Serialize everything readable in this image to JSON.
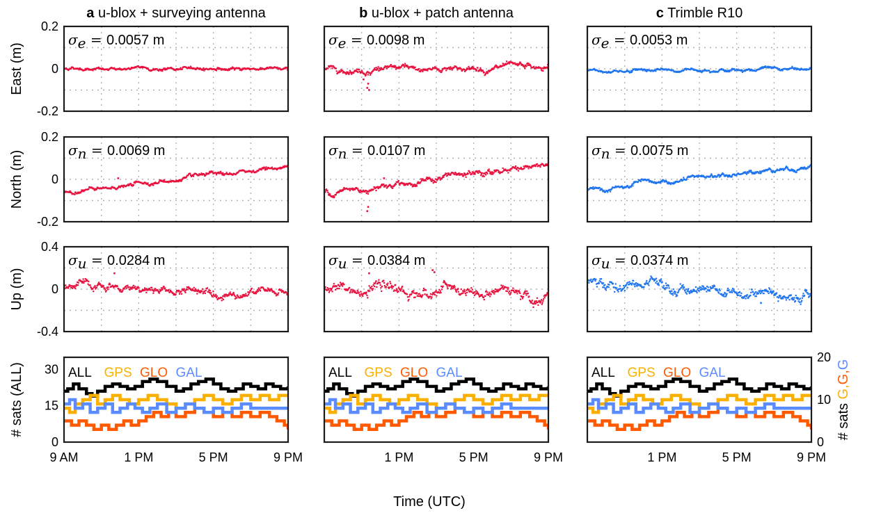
{
  "figure": {
    "xlabel": "Time (UTC)",
    "x_tick_labels": [
      "9 AM",
      "1 PM",
      "5 PM",
      "9 PM"
    ],
    "columns": [
      {
        "letter": "a",
        "title": "u-blox + surveying antenna",
        "color": "#e8123f"
      },
      {
        "letter": "b",
        "title": "u-blox + patch antenna",
        "color": "#e8123f"
      },
      {
        "letter": "c",
        "title": "Trimble R10",
        "color": "#1f75ef"
      }
    ]
  },
  "chart_data": [
    {
      "type": "scatter",
      "id": "east",
      "ylabel": "East (m)",
      "ylim": [
        -0.2,
        0.2
      ],
      "y_tick_labels": [
        "0.2",
        "0",
        "-0.2"
      ],
      "xlim": [
        "09:00",
        "21:00"
      ],
      "grid": true,
      "sigma_symbol": "σ",
      "sigma_sub": "e",
      "sigma_values": [
        "0.0057 m",
        "0.0098 m",
        "0.0053 m"
      ],
      "trend_start": [
        0.0,
        -0.005,
        -0.01
      ],
      "trend_end": [
        0.0,
        0.005,
        0.0
      ],
      "noise": [
        0.005,
        0.009,
        0.005
      ],
      "outliers": [
        [],
        [
          [
            11.1,
            -0.05
          ],
          [
            11.3,
            -0.09
          ],
          [
            11.35,
            -0.07
          ],
          [
            11.4,
            -0.1
          ]
        ],
        [
          [
            13.8,
            -0.015
          ]
        ]
      ]
    },
    {
      "type": "scatter",
      "id": "north",
      "ylabel": "North (m)",
      "ylim": [
        -0.2,
        0.2
      ],
      "y_tick_labels": [
        "0.2",
        "0",
        "-0.2"
      ],
      "xlim": [
        "09:00",
        "21:00"
      ],
      "grid": true,
      "sigma_symbol": "σ",
      "sigma_sub": "n",
      "sigma_values": [
        "0.0069 m",
        "0.0107 m",
        "0.0075 m"
      ],
      "trend_start": [
        -0.065,
        -0.065,
        -0.055
      ],
      "trend_end": [
        0.06,
        0.07,
        0.065
      ],
      "noise": [
        0.006,
        0.01,
        0.007
      ],
      "outliers": [
        [
          [
            11.9,
            0.005
          ]
        ],
        [
          [
            11.3,
            -0.15
          ],
          [
            11.35,
            -0.13
          ],
          [
            12.2,
            0.005
          ]
        ],
        []
      ]
    },
    {
      "type": "scatter",
      "id": "up",
      "ylabel": "Up (m)",
      "ylim": [
        -0.4,
        0.4
      ],
      "y_tick_labels": [
        "0.4",
        "0",
        "-0.4"
      ],
      "xlim": [
        "09:00",
        "21:00"
      ],
      "grid": true,
      "sigma_symbol": "σ",
      "sigma_sub": "u",
      "sigma_values": [
        "0.0284 m",
        "0.0384 m",
        "0.0374 m"
      ],
      "trend_start": [
        0.02,
        0.0,
        0.05
      ],
      "trend_end": [
        -0.04,
        -0.05,
        -0.06
      ],
      "noise": [
        0.025,
        0.035,
        0.033
      ],
      "outliers": [
        [
          [
            11.7,
            0.15
          ]
        ],
        [
          [
            11.4,
            0.15
          ],
          [
            14.8,
            0.18
          ],
          [
            14.9,
            0.16
          ]
        ],
        [
          [
            18.3,
            -0.13
          ]
        ]
      ]
    },
    {
      "type": "line",
      "id": "sats",
      "ylabel": "# sats (ALL)",
      "ylabel_right_prefix": "# sats ",
      "ylabel_right_parts": [
        {
          "text": "G",
          "color": "#fbb000"
        },
        {
          "text": ",",
          "color": "#fbb000"
        },
        {
          "text": "G",
          "color": "#ff5a00"
        },
        {
          "text": ",",
          "color": "#ff5a00"
        },
        {
          "text": "G",
          "color": "#5b8cff"
        }
      ],
      "ylim": [
        0,
        35
      ],
      "y_tick_labels": [
        "30",
        "15",
        "0"
      ],
      "y_tick_values": [
        30,
        15,
        0
      ],
      "ylim_right": [
        0,
        20
      ],
      "y_tick_labels_right": [
        "20",
        "10",
        "0"
      ],
      "y_tick_values_right": [
        20,
        10,
        0
      ],
      "xlim": [
        "09:00",
        "21:00"
      ],
      "grid": false,
      "legend": "top-left",
      "series": [
        {
          "name": "ALL",
          "color": "#000000",
          "axis": "left",
          "x": [
            9,
            9.2,
            9.5,
            9.8,
            10.2,
            10.5,
            10.8,
            11.2,
            11.6,
            12,
            12.4,
            12.8,
            13.2,
            13.6,
            14,
            14.5,
            15,
            15.4,
            15.8,
            16.2,
            16.6,
            17,
            17.4,
            17.8,
            18.2,
            18.6,
            19,
            19.4,
            19.8,
            20.2,
            20.6,
            21
          ],
          "y": [
            21,
            22,
            24,
            22,
            20,
            19,
            21,
            23,
            24,
            23,
            22,
            23,
            25,
            26,
            25,
            23,
            21,
            22,
            24,
            25,
            26,
            24,
            22,
            21,
            22,
            24,
            23,
            22,
            24,
            23,
            22,
            23
          ]
        },
        {
          "name": "GPS",
          "color": "#fbb000",
          "axis": "right",
          "x": [
            9,
            9.3,
            9.6,
            10,
            10.4,
            10.8,
            11.2,
            11.6,
            12,
            12.5,
            13,
            13.5,
            14,
            14.5,
            15,
            15.5,
            16,
            16.5,
            17,
            17.5,
            18,
            18.5,
            19,
            19.5,
            20,
            20.5,
            21
          ],
          "y": [
            8,
            7,
            9,
            10,
            11,
            9,
            10,
            11,
            10,
            9,
            10,
            11,
            10,
            9,
            8,
            9,
            10,
            11,
            10,
            9,
            10,
            11,
            10,
            11,
            10,
            11,
            11
          ]
        },
        {
          "name": "GLO",
          "color": "#ff5a00",
          "axis": "right",
          "x": [
            9,
            9.4,
            9.8,
            10.2,
            10.6,
            11,
            11.4,
            11.8,
            12.2,
            12.6,
            13,
            13.4,
            13.8,
            14.2,
            14.6,
            15,
            15.5,
            16,
            16.5,
            17,
            17.5,
            18,
            18.5,
            19,
            19.5,
            20,
            20.4,
            20.8,
            21
          ],
          "y": [
            5,
            4,
            5,
            4,
            3,
            4,
            3,
            4,
            5,
            4,
            5,
            6,
            7,
            6,
            7,
            6,
            7,
            8,
            7,
            6,
            7,
            6,
            7,
            6,
            7,
            6,
            5,
            4,
            3
          ]
        },
        {
          "name": "GAL",
          "color": "#5b8cff",
          "axis": "right",
          "x": [
            9,
            9.3,
            9.6,
            10,
            10.4,
            10.8,
            11.2,
            11.6,
            12,
            12.4,
            12.8,
            13.2,
            13.6,
            14,
            14.5,
            15,
            15.5,
            16,
            16.5,
            17,
            17.5,
            18,
            18.5,
            19,
            19.5,
            20,
            20.5,
            21
          ],
          "y": [
            9,
            10,
            8,
            9,
            7,
            8,
            9,
            7,
            8,
            9,
            8,
            7,
            8,
            9,
            7,
            8,
            9,
            8,
            7,
            8,
            7,
            8,
            9,
            8,
            8,
            8,
            8,
            8
          ]
        }
      ]
    }
  ]
}
